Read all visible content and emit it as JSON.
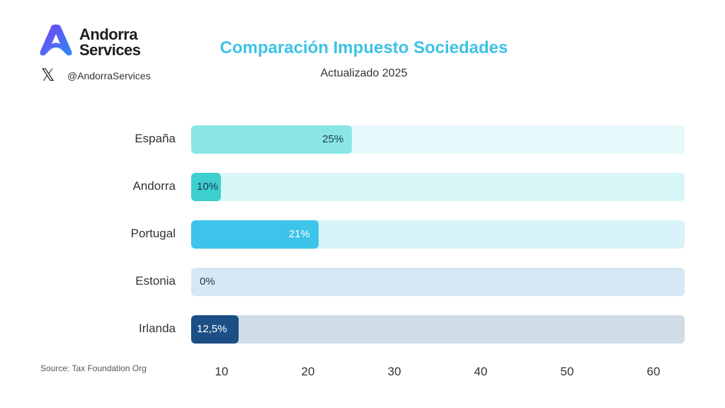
{
  "brand": {
    "line1": "Andorra",
    "line2": "Services",
    "handle": "@AndorraServices",
    "x_icon": "x-logo-icon"
  },
  "chart_data": {
    "type": "bar",
    "orientation": "horizontal",
    "title": "Comparación Impuesto Sociedades",
    "subtitle": "Actualizado 2025",
    "categories": [
      "España",
      "Andorra",
      "Portugal",
      "Estonia",
      "Irlanda"
    ],
    "values": [
      25,
      10,
      21,
      0,
      12.5
    ],
    "value_labels": [
      "25%",
      "10%",
      "21%",
      "0%",
      "12,5%"
    ],
    "bar_fill_fraction": [
      0.326,
      0.06,
      0.258,
      0,
      0.096
    ],
    "bar_colors": [
      "#8ae6e6",
      "#3dcfcf",
      "#3cc4ea",
      "#d6e8f4",
      "#1b4f86"
    ],
    "track_colors": [
      "#e6f9fa",
      "#d9f6f7",
      "#d7f2f8",
      "#d6e8f4",
      "#d0dce6"
    ],
    "label_colors": [
      "#1f3b4a",
      "#1f3b4a",
      "#ffffff",
      "#1f3b4a",
      "#ffffff"
    ],
    "xticks": [
      10,
      20,
      30,
      40,
      50,
      60
    ],
    "source": "Source: Tax Foundation Org"
  }
}
